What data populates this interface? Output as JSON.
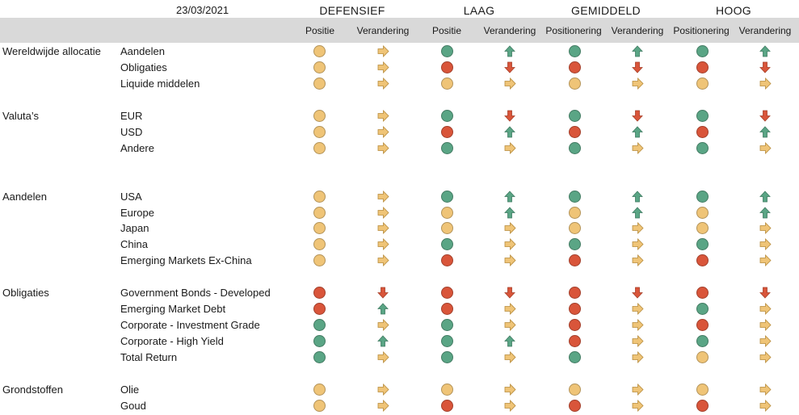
{
  "header": {
    "date": "23/03/2021",
    "groups": [
      "DEFENSIEF",
      "LAAG",
      "GEMIDDELD",
      "HOOG"
    ],
    "subheaders": [
      "Positie",
      "Verandering",
      "Positie",
      "Verandering",
      "Positionering",
      "Verandering",
      "Positionering",
      "Verandering"
    ]
  },
  "colors": {
    "green": "#5aa585",
    "red": "#d9553a",
    "yellow": "#efc477"
  },
  "rows": [
    {
      "category": "Wereldwijde allocatie",
      "label": "Aandelen",
      "pos": [
        "y",
        "g",
        "g",
        "g"
      ],
      "chg": [
        "right",
        "up",
        "up",
        "up"
      ]
    },
    {
      "category": "",
      "label": "Obligaties",
      "pos": [
        "y",
        "r",
        "r",
        "r"
      ],
      "chg": [
        "right",
        "down",
        "down",
        "down"
      ]
    },
    {
      "category": "",
      "label": "Liquide middelen",
      "pos": [
        "y",
        "y",
        "y",
        "y"
      ],
      "chg": [
        "right",
        "right",
        "right",
        "right"
      ]
    },
    {
      "category": "Valuta’s",
      "label": "EUR",
      "pos": [
        "y",
        "g",
        "g",
        "g"
      ],
      "chg": [
        "right",
        "down",
        "down",
        "down"
      ]
    },
    {
      "category": "",
      "label": "USD",
      "pos": [
        "y",
        "r",
        "r",
        "r"
      ],
      "chg": [
        "right",
        "up",
        "up",
        "up"
      ]
    },
    {
      "category": "",
      "label": "Andere",
      "pos": [
        "y",
        "g",
        "g",
        "g"
      ],
      "chg": [
        "right",
        "right",
        "right",
        "right"
      ]
    },
    {
      "category": "Aandelen",
      "label": "USA",
      "pos": [
        "y",
        "g",
        "g",
        "g"
      ],
      "chg": [
        "right",
        "up",
        "up",
        "up"
      ]
    },
    {
      "category": "",
      "label": "Europe",
      "pos": [
        "y",
        "y",
        "y",
        "y"
      ],
      "chg": [
        "right",
        "up",
        "up",
        "up"
      ]
    },
    {
      "category": "",
      "label": "Japan",
      "pos": [
        "y",
        "y",
        "y",
        "y"
      ],
      "chg": [
        "right",
        "right",
        "right",
        "right"
      ]
    },
    {
      "category": "",
      "label": "China",
      "pos": [
        "y",
        "g",
        "g",
        "g"
      ],
      "chg": [
        "right",
        "right",
        "right",
        "right"
      ]
    },
    {
      "category": "",
      "label": "Emerging Markets Ex-China",
      "pos": [
        "y",
        "r",
        "r",
        "r"
      ],
      "chg": [
        "right",
        "right",
        "right",
        "right"
      ]
    },
    {
      "category": "Obligaties",
      "label": "Government Bonds - Developed",
      "pos": [
        "r",
        "r",
        "r",
        "r"
      ],
      "chg": [
        "down",
        "down",
        "down",
        "down"
      ]
    },
    {
      "category": "",
      "label": "Emerging Market Debt",
      "pos": [
        "r",
        "r",
        "r",
        "g"
      ],
      "chg": [
        "up",
        "right",
        "right",
        "right"
      ]
    },
    {
      "category": "",
      "label": "Corporate - Investment Grade",
      "pos": [
        "g",
        "g",
        "r",
        "r"
      ],
      "chg": [
        "right",
        "right",
        "right",
        "right"
      ]
    },
    {
      "category": "",
      "label": "Corporate - High Yield",
      "pos": [
        "g",
        "g",
        "r",
        "g"
      ],
      "chg": [
        "up",
        "up",
        "right",
        "right"
      ]
    },
    {
      "category": "",
      "label": "Total Return",
      "pos": [
        "g",
        "g",
        "g",
        "y"
      ],
      "chg": [
        "right",
        "right",
        "right",
        "right"
      ]
    },
    {
      "category": "Grondstoffen",
      "label": "Olie",
      "pos": [
        "y",
        "y",
        "y",
        "y"
      ],
      "chg": [
        "right",
        "right",
        "right",
        "right"
      ]
    },
    {
      "category": "",
      "label": "Goud",
      "pos": [
        "y",
        "r",
        "r",
        "r"
      ],
      "chg": [
        "right",
        "right",
        "right",
        "right"
      ]
    }
  ]
}
